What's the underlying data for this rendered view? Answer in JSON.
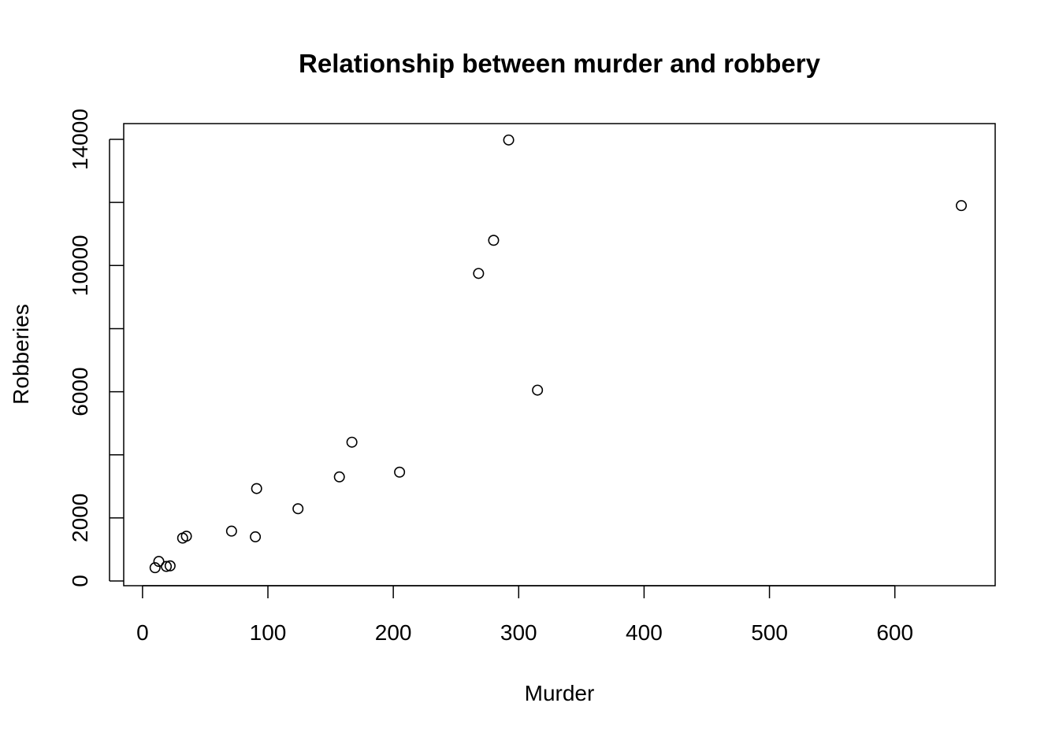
{
  "chart_data": {
    "type": "scatter",
    "title": "Relationship between murder and robbery",
    "xlabel": "Murder",
    "ylabel": "Robberies",
    "xlim": [
      -15,
      680
    ],
    "ylim": [
      -150,
      14500
    ],
    "x_ticks": [
      0,
      100,
      200,
      300,
      400,
      500,
      600
    ],
    "y_ticks": [
      0,
      2000,
      4000,
      6000,
      8000,
      10000,
      12000,
      14000
    ],
    "y_tick_labels": [
      "0",
      "2000",
      "",
      "6000",
      "",
      "10000",
      "",
      "14000"
    ],
    "x_tick_labels": [
      "0",
      "100",
      "200",
      "300",
      "400",
      "500",
      "600"
    ],
    "grid": false,
    "legend": null,
    "marker": "open-circle",
    "points": [
      {
        "x": 10,
        "y": 420
      },
      {
        "x": 13,
        "y": 620
      },
      {
        "x": 19,
        "y": 460
      },
      {
        "x": 22,
        "y": 480
      },
      {
        "x": 32,
        "y": 1360
      },
      {
        "x": 35,
        "y": 1420
      },
      {
        "x": 71,
        "y": 1580
      },
      {
        "x": 90,
        "y": 1400
      },
      {
        "x": 91,
        "y": 2930
      },
      {
        "x": 124,
        "y": 2290
      },
      {
        "x": 157,
        "y": 3300
      },
      {
        "x": 167,
        "y": 4400
      },
      {
        "x": 205,
        "y": 3450
      },
      {
        "x": 268,
        "y": 9750
      },
      {
        "x": 280,
        "y": 10800
      },
      {
        "x": 292,
        "y": 13980
      },
      {
        "x": 315,
        "y": 6050
      },
      {
        "x": 653,
        "y": 11900
      }
    ]
  }
}
